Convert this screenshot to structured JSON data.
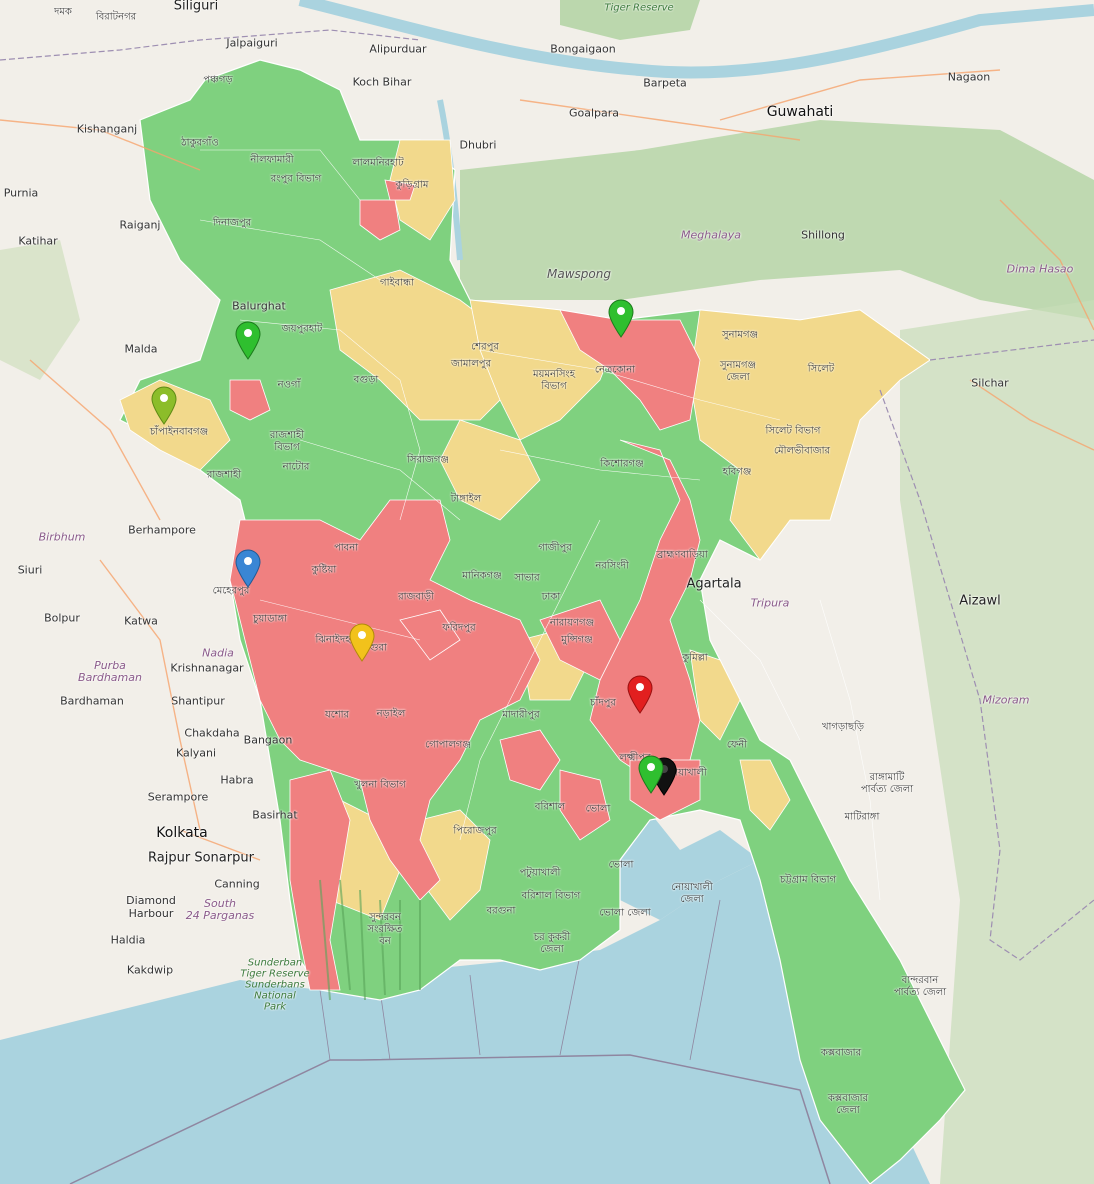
{
  "map": {
    "labels": {
      "siliguri": "Siliguri",
      "jalpaiguri": "Jalpaiguri",
      "alipurduar": "Alipurduar",
      "bongaigaon": "Bongaigaon",
      "barpeta": "Barpeta",
      "guwahati": "Guwahati",
      "nagaon": "Nagaon",
      "koch_bihar": "Koch Bihar",
      "kishanganj": "Kishanganj",
      "goalpara": "Goalpara",
      "dhubri": "Dhubri",
      "purnia": "Purnia",
      "raiganj": "Raiganj",
      "katihar": "Katihar",
      "balurghat": "Balurghat",
      "malda": "Malda",
      "meghalaya": "Meghalaya",
      "shillong": "Shillong",
      "dima_hasao": "Dima Hasao",
      "mawspong": "Mawspong",
      "silchar": "Silchar",
      "berhampore": "Berhampore",
      "birbhum": "Birbhum",
      "siuri": "Siuri",
      "bolpur": "Bolpur",
      "katwa": "Katwa",
      "nadia": "Nadia",
      "krishnanagar": "Krishnanagar",
      "purba_bardhaman": "Purba\nBardhaman",
      "bardhaman": "Bardhaman",
      "shantipur": "Shantipur",
      "chakdaha": "Chakdaha",
      "kalyani": "Kalyani",
      "bangaon": "Bangaon",
      "habra": "Habra",
      "serampore": "Serampore",
      "basirhat": "Basirhat",
      "kolkata": "Kolkata",
      "rajpur_sonarpur": "Rajpur Sonarpur",
      "canning": "Canning",
      "diamond_harbour": "Diamond\nHarbour",
      "south_24_parganas": "South\n24 Parganas",
      "haldia": "Haldia",
      "kakdwip": "Kakdwip",
      "sundarban": "Sunderban\nTiger Reserve\nSunderbans\nNational\nPark",
      "tiger_reserve_top": "Tiger Reserve",
      "agartala": "Agartala",
      "tripura": "Tripura",
      "aizawl": "Aizawl",
      "mizoram": "Mizoram",
      "damak": "দমক",
      "biratnagar": "বিরাটনগর",
      "rangpur_div": "রংপুর বিভাগ",
      "panchagarh": "পঞ্চগড়",
      "thakurgaon": "ঠাকুরগাঁও",
      "nilphamari": "নীলফামারী",
      "lalmonirhat": "লালমনিরহাট",
      "kurigram": "কুড়িগ্রাম",
      "dinajpur": "দিনাজপুর",
      "gaibandha": "গাইবান্ধা",
      "joypurhat": "জয়পুরহাট",
      "naogaon": "নওগাঁ",
      "bogura": "বগুড়া",
      "chapai": "চাঁপাইনবাবগঞ্জ",
      "rajshahi_div": "রাজশাহী\nবিভাগ",
      "rajshahi": "রাজশাহী",
      "natore": "নাটোর",
      "sirajganj": "সিরাজগঞ্জ",
      "sherpur": "শেরপুর",
      "jamalpur": "জামালপুর",
      "mymensingh_div": "ময়মনসিংহ\nবিভাগ",
      "netrokona": "নেত্রকোনা",
      "sunamganj": "সুনামগঞ্জ",
      "sunamganj_zila": "সুনামগঞ্জ\nজেলা",
      "sylhet": "সিলেট",
      "sylhet_div": "সিলেট বিভাগ",
      "moulvibazar": "মৌলভীবাজার",
      "habiganj": "হবিগঞ্জ",
      "kishoreganj": "কিশোরগঞ্জ",
      "tangail": "টাঙ্গাইল",
      "gazipur": "গাজীপুর",
      "narsingdi": "নরসিংদী",
      "brahmanbaria": "ব্রাহ্মণবাড়িয়া",
      "pabna": "পাবনা",
      "kushtia": "কুষ্টিয়া",
      "manikganj": "মানিকগঞ্জ",
      "savar": "সাভার",
      "dhaka": "ঢাকা",
      "meherpur": "মেহেরপুর",
      "chuadanga": "চুয়াডাঙ্গা",
      "rajbari": "রাজবাড়ী",
      "faridpur": "ফরিদপুর",
      "narayanganj": "নারায়ণগঞ্জ",
      "munshiganj": "মুন্সিগঞ্জ",
      "cumilla": "কুমিল্লা",
      "jhenaidah": "ঝিনাইদহ",
      "magura": "মাগুরা",
      "jashore": "যশোর",
      "narail": "নড়াইল",
      "madaripur": "মাদারীপুর",
      "chandpur": "চাঁদপুর",
      "gopalganj": "গোপালগঞ্জ",
      "lakshmipur": "লক্ষ্মীপুর",
      "noakhali": "নোয়াখালী",
      "feni": "ফেনী",
      "khulna_div": "খুলনা বিভাগ",
      "barishal": "বরিশাল",
      "bhola": "ভোলা",
      "pirojpur": "পিরোজপুর",
      "patuakhali": "পটুয়াখালী",
      "barishal_div": "বরিশাল বিভাগ",
      "bhola_zila": "ভোলা জেলা",
      "noakhali_zila": "নোয়াখালী\nজেলা",
      "barguna": "বরগুনা",
      "char_kukri": "চর কুকরী\nজেলা",
      "sundarbans_bn": "সুন্দরবন\nসংরক্ষিত\nবন",
      "khagrachhari": "খাগড়াছড়ি",
      "rangamati": "রাঙ্গামাটি\nপার্বত্য জেলা",
      "chattogram_div": "চট্টগ্রাম বিভাগ",
      "bandarban": "বান্দরবান\nপার্বত্য জেলা",
      "coxsbazar": "কক্সবাজার",
      "coxsbazar_zila": "কক্সবাজার\nজেলা",
      "mahalchhari": "মাটিরাঙ্গা"
    },
    "markers": [
      {
        "name": "marker-green",
        "color": "#2fbf2f"
      },
      {
        "name": "marker-lightgreen",
        "color": "#8cbd2a"
      },
      {
        "name": "marker-blue",
        "color": "#3a86d4"
      },
      {
        "name": "marker-yellow",
        "color": "#f2c21b"
      },
      {
        "name": "marker-red",
        "color": "#e21f1f"
      },
      {
        "name": "marker-green-2",
        "color": "#2fbf2f"
      },
      {
        "name": "marker-green-3",
        "color": "#2fbf2f"
      }
    ],
    "colors": {
      "water": "#aad3df",
      "land": "#f2efe9",
      "forest": "#add19e",
      "choropleth_green": "#7fd17f",
      "choropleth_yellow": "#f2d98c",
      "choropleth_red": "#f08080"
    }
  }
}
